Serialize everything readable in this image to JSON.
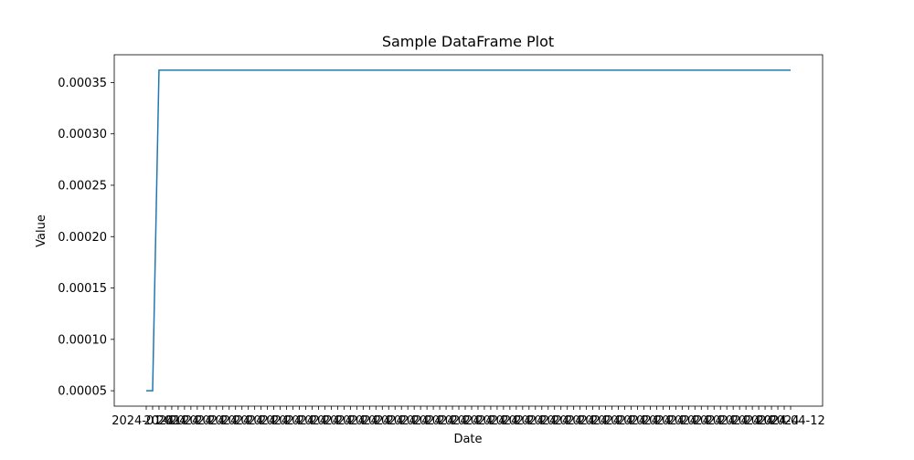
{
  "chart_data": {
    "type": "line",
    "title": "Sample DataFrame Plot",
    "xlabel": "Date",
    "ylabel": "Value",
    "x_tick_labels": [
      "2024-01-01",
      "2024-04-12"
    ],
    "y_ticks": [
      5e-05,
      0.0001,
      0.00015,
      0.0002,
      0.00025,
      0.0003,
      0.00035
    ],
    "y_tick_labels": [
      "0.00005",
      "0.00010",
      "0.00015",
      "0.00020",
      "0.00025",
      "0.00030",
      "0.00035"
    ],
    "ylim": [
      3.5e-05,
      0.000377
    ],
    "x_points_count": 102,
    "grid": false,
    "series": [
      {
        "color": "#1f77b4",
        "x_start": "2024-01-01",
        "x_end": "2024-04-12",
        "values_summary": [
          {
            "index": 0,
            "value": 5e-05
          },
          {
            "index": 1,
            "value": 5e-05
          },
          {
            "index": 2,
            "value": 0.000362
          },
          {
            "index": 101,
            "value": 0.000362
          }
        ]
      }
    ]
  }
}
